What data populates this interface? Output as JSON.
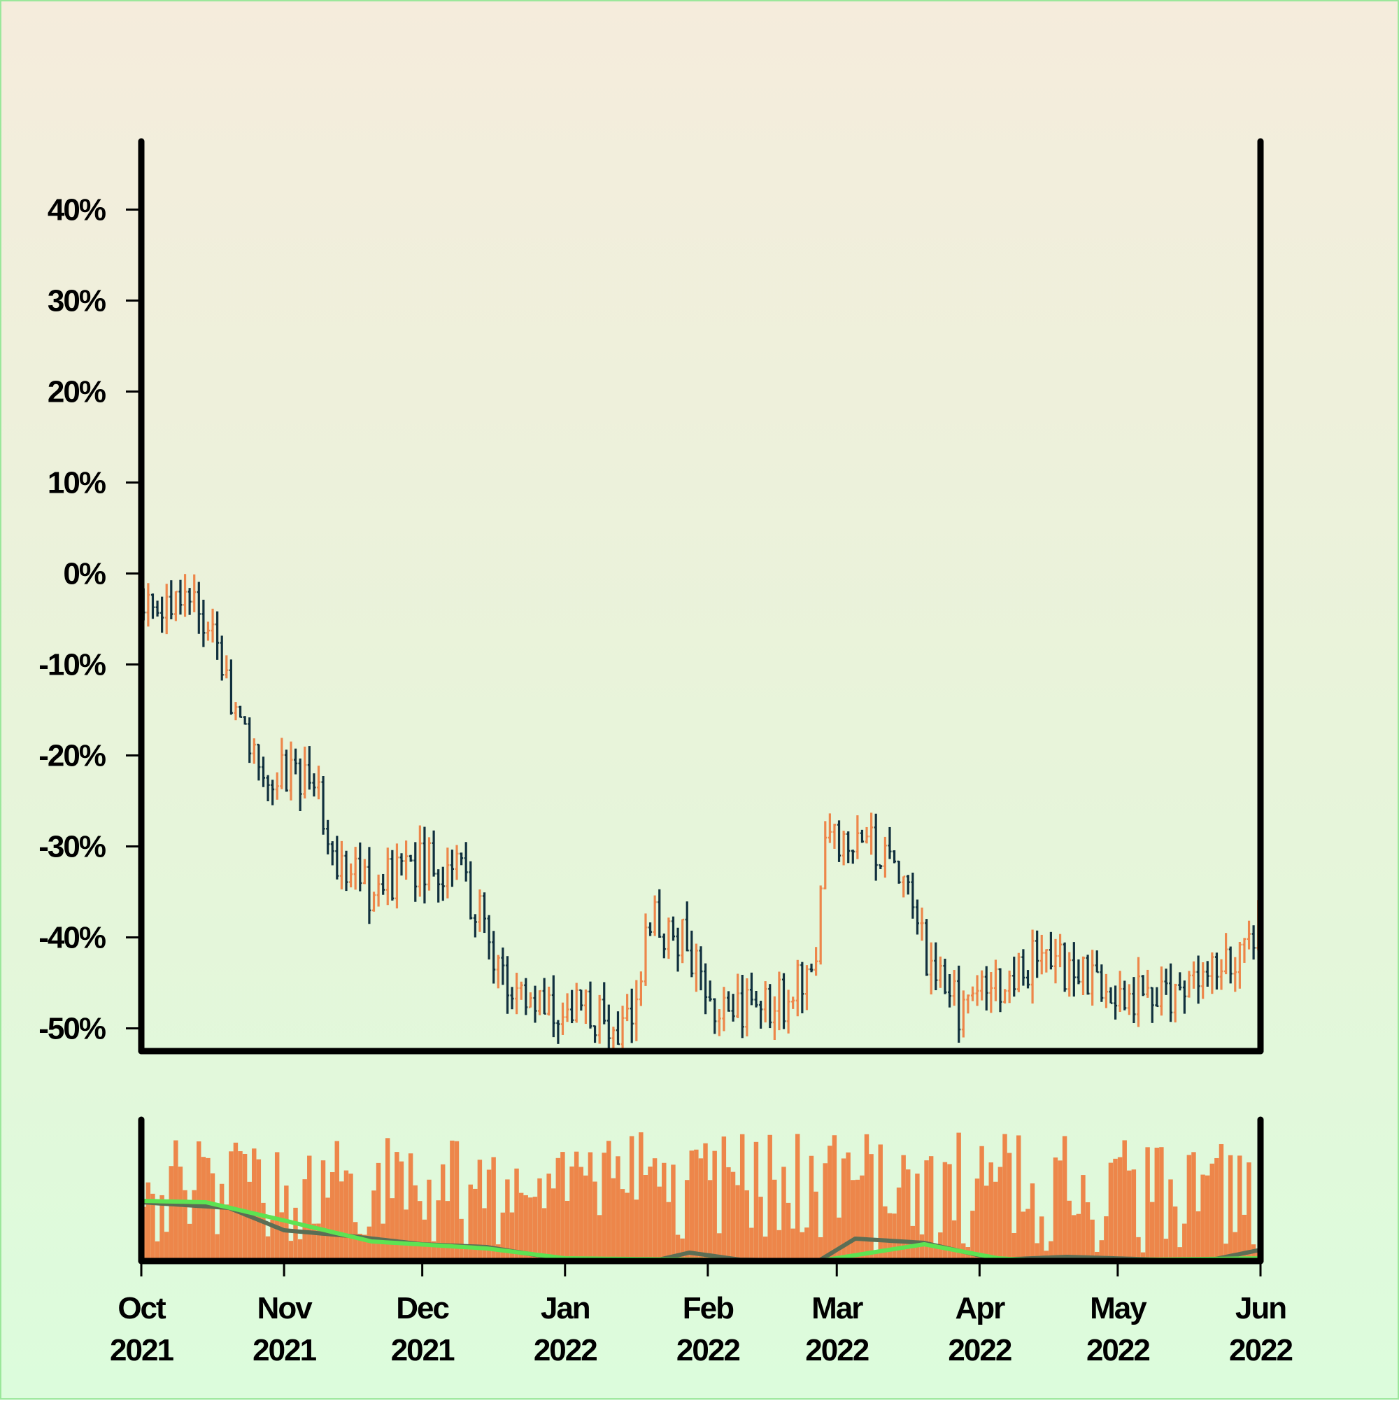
{
  "chart_data": {
    "type": "ohlc",
    "title": "",
    "xlabel": "",
    "ylabel": "",
    "y_axis": {
      "unit": "%",
      "ylim": [
        -52.5,
        47.5
      ],
      "ticks": [
        40,
        30,
        20,
        10,
        0,
        -10,
        -20,
        -30,
        -40,
        -50
      ],
      "tick_labels": [
        "40%",
        "30%",
        "20%",
        "10%",
        "0%",
        "-10%",
        "-20%",
        "-30%",
        "-40%",
        "-50%"
      ]
    },
    "x_axis": {
      "range": [
        "2021-10-01",
        "2022-06-01"
      ],
      "ticks": [
        {
          "month": "Oct",
          "year": "2021",
          "date": "2021-10-01"
        },
        {
          "month": "Nov",
          "year": "2021",
          "date": "2021-11-01"
        },
        {
          "month": "Dec",
          "year": "2021",
          "date": "2021-12-01"
        },
        {
          "month": "Jan",
          "year": "2022",
          "date": "2022-01-01"
        },
        {
          "month": "Feb",
          "year": "2022",
          "date": "2022-02-01"
        },
        {
          "month": "Mar",
          "year": "2022",
          "date": "2022-03-01"
        },
        {
          "month": "Apr",
          "year": "2022",
          "date": "2022-04-01"
        },
        {
          "month": "May",
          "year": "2022",
          "date": "2022-05-01"
        },
        {
          "month": "Jun",
          "year": "2022",
          "date": "2022-06-01"
        }
      ]
    },
    "grid": false,
    "colors": {
      "up": "#ed864a",
      "down": "#11303e",
      "volume": "#ed864a",
      "ma_short": "#5b6e55",
      "ma_long": "#5de352",
      "frame": "#000000"
    },
    "price_anchors": [
      {
        "date": "2021-10-01",
        "close": -2
      },
      {
        "date": "2021-10-14",
        "close": -4
      },
      {
        "date": "2021-10-25",
        "close": -21
      },
      {
        "date": "2021-11-08",
        "close": -24
      },
      {
        "date": "2021-11-14",
        "close": -33
      },
      {
        "date": "2021-11-20",
        "close": -35
      },
      {
        "date": "2021-11-28",
        "close": -32
      },
      {
        "date": "2021-12-08",
        "close": -32
      },
      {
        "date": "2021-12-22",
        "close": -47
      },
      {
        "date": "2022-01-05",
        "close": -48
      },
      {
        "date": "2022-01-14",
        "close": -51
      },
      {
        "date": "2022-01-20",
        "close": -38
      },
      {
        "date": "2022-01-26",
        "close": -40
      },
      {
        "date": "2022-02-05",
        "close": -49
      },
      {
        "date": "2022-02-17",
        "close": -47
      },
      {
        "date": "2022-02-24",
        "close": -44
      },
      {
        "date": "2022-02-26",
        "close": -29
      },
      {
        "date": "2022-03-12",
        "close": -30
      },
      {
        "date": "2022-03-22",
        "close": -44
      },
      {
        "date": "2022-03-28",
        "close": -48
      },
      {
        "date": "2022-04-15",
        "close": -42
      },
      {
        "date": "2022-04-28",
        "close": -46
      },
      {
        "date": "2022-05-12",
        "close": -46
      },
      {
        "date": "2022-05-20",
        "close": -44
      },
      {
        "date": "2022-06-01",
        "close": -40
      }
    ],
    "volume_series": [
      {
        "name": "volume",
        "type": "bar"
      },
      {
        "name": "",
        "type": "moving-average",
        "anchors": [
          {
            "date": "2021-10-01",
            "value": 0.42
          },
          {
            "date": "2021-10-20",
            "value": 0.38
          },
          {
            "date": "2021-11-01",
            "value": 0.22
          },
          {
            "date": "2021-11-15",
            "value": 0.18
          },
          {
            "date": "2021-12-01",
            "value": 0.12
          },
          {
            "date": "2021-12-15",
            "value": 0.1
          },
          {
            "date": "2022-01-01",
            "value": 0.01
          },
          {
            "date": "2022-01-20",
            "value": 0.0
          },
          {
            "date": "2022-01-28",
            "value": 0.06
          },
          {
            "date": "2022-02-08",
            "value": 0.01
          },
          {
            "date": "2022-02-25",
            "value": 0.0
          },
          {
            "date": "2022-03-05",
            "value": 0.16
          },
          {
            "date": "2022-03-20",
            "value": 0.13
          },
          {
            "date": "2022-04-05",
            "value": 0.01
          },
          {
            "date": "2022-04-20",
            "value": 0.03
          },
          {
            "date": "2022-05-20",
            "value": 0.0
          },
          {
            "date": "2022-06-01",
            "value": 0.08
          }
        ]
      },
      {
        "name": "",
        "type": "moving-average",
        "anchors": [
          {
            "date": "2021-10-01",
            "value": 0.43
          },
          {
            "date": "2021-10-15",
            "value": 0.42
          },
          {
            "date": "2021-11-01",
            "value": 0.29
          },
          {
            "date": "2021-11-20",
            "value": 0.14
          },
          {
            "date": "2021-12-15",
            "value": 0.09
          },
          {
            "date": "2022-01-01",
            "value": 0.02
          },
          {
            "date": "2022-02-25",
            "value": 0.0
          },
          {
            "date": "2022-03-20",
            "value": 0.12
          },
          {
            "date": "2022-04-05",
            "value": 0.02
          },
          {
            "date": "2022-04-15",
            "value": 0.0
          },
          {
            "date": "2022-06-01",
            "value": 0.02
          }
        ]
      }
    ]
  }
}
